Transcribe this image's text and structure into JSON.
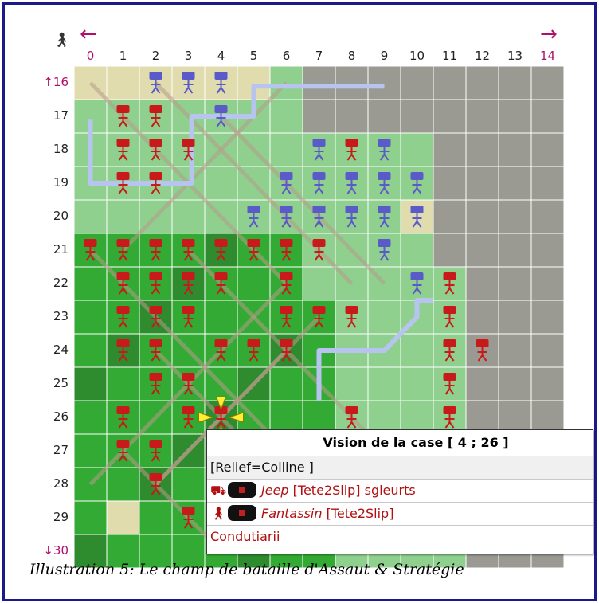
{
  "board": {
    "columns": [
      "0",
      "1",
      "2",
      "3",
      "4",
      "5",
      "6",
      "7",
      "8",
      "9",
      "10",
      "11",
      "12",
      "13",
      "14"
    ],
    "rows": [
      "16",
      "17",
      "18",
      "19",
      "20",
      "21",
      "22",
      "23",
      "24",
      "25",
      "26",
      "27",
      "28",
      "29",
      "30"
    ],
    "left_arrow": "←",
    "right_arrow": "→",
    "up_arrow": "↑",
    "down_arrow": "↓",
    "corner_icon": "walking-man-icon",
    "colors": {
      "light_green": "#8fd08f",
      "plain_green": "#33aa33",
      "dark_green": "#2e8b2e",
      "fog": "#9a9a92",
      "sand": "#e0dcae",
      "road": "#b89a8a",
      "river": "#b8c4f0",
      "red_unit": "#c81a1a",
      "blue_unit": "#5a5ac8",
      "yellow_cursor": "#ffee33"
    },
    "units": {
      "red": [
        [
          1,
          17
        ],
        [
          1,
          18
        ],
        [
          1,
          19
        ],
        [
          2,
          17
        ],
        [
          2,
          18
        ],
        [
          2,
          19
        ],
        [
          3,
          18
        ],
        [
          8,
          18
        ],
        [
          6,
          20
        ],
        [
          7,
          20
        ],
        [
          0,
          21
        ],
        [
          1,
          21
        ],
        [
          2,
          21
        ],
        [
          3,
          21
        ],
        [
          4,
          21
        ],
        [
          5,
          21
        ],
        [
          6,
          21
        ],
        [
          7,
          21
        ],
        [
          1,
          22
        ],
        [
          2,
          22
        ],
        [
          3,
          22
        ],
        [
          4,
          22
        ],
        [
          6,
          22
        ],
        [
          11,
          22
        ],
        [
          1,
          23
        ],
        [
          2,
          23
        ],
        [
          3,
          23
        ],
        [
          6,
          23
        ],
        [
          7,
          23
        ],
        [
          8,
          23
        ],
        [
          11,
          23
        ],
        [
          1,
          24
        ],
        [
          2,
          24
        ],
        [
          4,
          24
        ],
        [
          5,
          24
        ],
        [
          6,
          24
        ],
        [
          11,
          24
        ],
        [
          12,
          24
        ],
        [
          2,
          25
        ],
        [
          3,
          25
        ],
        [
          11,
          25
        ],
        [
          1,
          26
        ],
        [
          3,
          26
        ],
        [
          4,
          26
        ],
        [
          8,
          26
        ],
        [
          11,
          26
        ],
        [
          1,
          27
        ],
        [
          2,
          27
        ],
        [
          2,
          28
        ],
        [
          3,
          29
        ]
      ],
      "blue": [
        [
          2,
          16
        ],
        [
          3,
          16
        ],
        [
          4,
          16
        ],
        [
          4,
          17
        ],
        [
          7,
          18
        ],
        [
          9,
          18
        ],
        [
          6,
          19
        ],
        [
          7,
          19
        ],
        [
          8,
          19
        ],
        [
          9,
          19
        ],
        [
          10,
          19
        ],
        [
          5,
          20
        ],
        [
          6,
          20
        ],
        [
          7,
          20
        ],
        [
          8,
          20
        ],
        [
          9,
          20
        ],
        [
          10,
          20
        ],
        [
          9,
          21
        ],
        [
          10,
          22
        ]
      ]
    },
    "cursor_cell": [
      4,
      26
    ]
  },
  "popup": {
    "title": "Vision de la case [ 4 ; 26 ]",
    "relief": "[Relief=Colline ]",
    "units": [
      {
        "icon": "jeep-icon",
        "name": "Jeep",
        "rest": " [Tete2Slip] sgleurts"
      },
      {
        "icon": "soldier-icon",
        "name": "Fantassin",
        "rest": " [Tete2Slip]"
      }
    ],
    "last_line": "Condutiarii"
  },
  "caption": "Illustration 5: Le champ de bataille d'Assaut & Stratégie"
}
